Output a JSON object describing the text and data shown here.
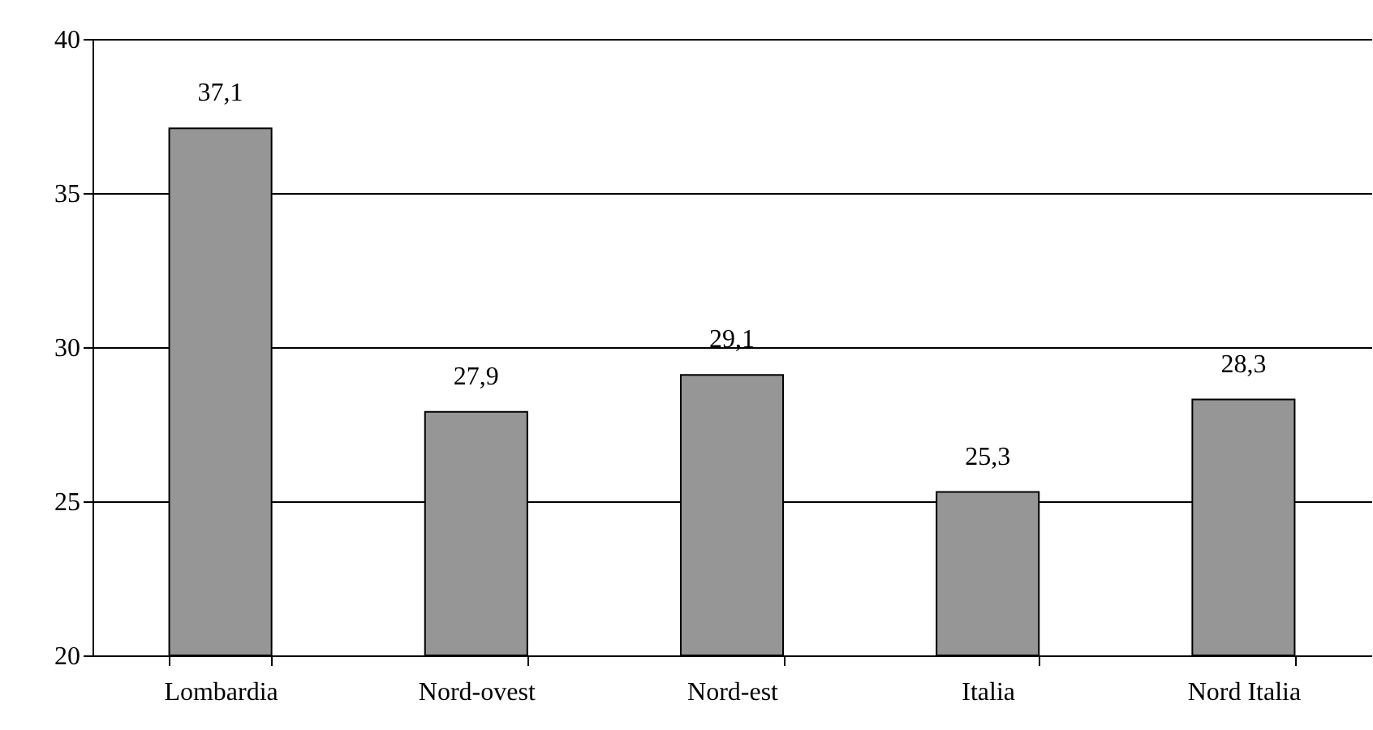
{
  "chart_data": {
    "type": "bar",
    "categories": [
      "Lombardia",
      "Nord-ovest",
      "Nord-est",
      "Italia",
      "Nord Italia"
    ],
    "values": [
      37.1,
      27.9,
      29.1,
      25.3,
      28.3
    ],
    "value_labels": [
      "37,1",
      "27,9",
      "29,1",
      "25,3",
      "28,3"
    ],
    "color": "#969696",
    "ylim": [
      20,
      40
    ],
    "yticks": [
      20,
      25,
      30,
      35,
      40
    ],
    "grid": "y"
  }
}
